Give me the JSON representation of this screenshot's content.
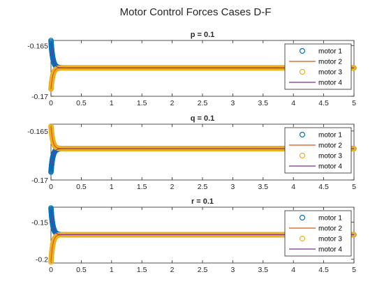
{
  "figure": {
    "title": "Motor Control Forces Cases D-F"
  },
  "colors": {
    "motor1": "#0072BD",
    "motor2": "#D95319",
    "motor3": "#EDB120",
    "motor4": "#7E2F8E",
    "axis": "#262626",
    "background": "#ffffff"
  },
  "chart_data": [
    {
      "type": "line",
      "title": "p = 0.1",
      "xlabel": "",
      "ylabel": "",
      "xlim": [
        0,
        5
      ],
      "ylim": [
        -0.17,
        -0.1645
      ],
      "xticks": [
        0,
        0.5,
        1,
        1.5,
        2,
        2.5,
        3,
        3.5,
        4,
        4.5,
        5
      ],
      "xtick_labels": [
        "0",
        "0.5",
        "1",
        "1.5",
        "2",
        "2.5",
        "3",
        "3.5",
        "4",
        "4.5",
        "5"
      ],
      "yticks": [
        -0.17,
        -0.165
      ],
      "ytick_labels": [
        "-0.17",
        "-0.165"
      ],
      "grid": false,
      "legend": "top-right",
      "series": [
        {
          "name": "motor 1",
          "marker": "o",
          "line": "none",
          "initial": -0.1645,
          "final": -0.1672
        },
        {
          "name": "motor 2",
          "marker": "none",
          "line": "solid",
          "initial": -0.1693,
          "final": -0.1672
        },
        {
          "name": "motor 3",
          "marker": "o",
          "line": "none",
          "initial": -0.1693,
          "final": -0.1672
        },
        {
          "name": "motor 4",
          "marker": "none",
          "line": "solid",
          "initial": -0.1645,
          "final": -0.1672
        }
      ]
    },
    {
      "type": "line",
      "title": "q = 0.1",
      "xlabel": "",
      "ylabel": "",
      "xlim": [
        0,
        5
      ],
      "ylim": [
        -0.17,
        -0.1643
      ],
      "xticks": [
        0,
        0.5,
        1,
        1.5,
        2,
        2.5,
        3,
        3.5,
        4,
        4.5,
        5
      ],
      "xtick_labels": [
        "0",
        "0.5",
        "1",
        "1.5",
        "2",
        "2.5",
        "3",
        "3.5",
        "4",
        "4.5",
        "5"
      ],
      "yticks": [
        -0.17,
        -0.165
      ],
      "ytick_labels": [
        "-0.17",
        "-0.165"
      ],
      "grid": false,
      "legend": "top-right",
      "series": [
        {
          "name": "motor 1",
          "marker": "o",
          "line": "none",
          "initial": -0.1692,
          "final": -0.1668
        },
        {
          "name": "motor 2",
          "marker": "none",
          "line": "solid",
          "initial": -0.1645,
          "final": -0.1668
        },
        {
          "name": "motor 3",
          "marker": "o",
          "line": "none",
          "initial": -0.1645,
          "final": -0.1668
        },
        {
          "name": "motor 4",
          "marker": "none",
          "line": "solid",
          "initial": -0.1692,
          "final": -0.1668
        }
      ]
    },
    {
      "type": "line",
      "title": "r = 0.1",
      "xlabel": "",
      "ylabel": "",
      "xlim": [
        0,
        5
      ],
      "ylim": [
        -0.205,
        -0.13
      ],
      "xticks": [
        0,
        0.5,
        1,
        1.5,
        2,
        2.5,
        3,
        3.5,
        4,
        4.5,
        5
      ],
      "xtick_labels": [
        "0",
        "0.5",
        "1",
        "1.5",
        "2",
        "2.5",
        "3",
        "3.5",
        "4",
        "4.5",
        "5"
      ],
      "yticks": [
        -0.2,
        -0.15
      ],
      "ytick_labels": [
        "-0.2",
        "-0.15"
      ],
      "grid": false,
      "legend": "top-right",
      "series": [
        {
          "name": "motor 1",
          "marker": "o",
          "line": "none",
          "initial": -0.131,
          "final": -0.167
        },
        {
          "name": "motor 2",
          "marker": "none",
          "line": "solid",
          "initial": -0.204,
          "final": -0.167
        },
        {
          "name": "motor 3",
          "marker": "o",
          "line": "none",
          "initial": -0.204,
          "final": -0.167
        },
        {
          "name": "motor 4",
          "marker": "none",
          "line": "solid",
          "initial": -0.131,
          "final": -0.167
        }
      ]
    }
  ]
}
